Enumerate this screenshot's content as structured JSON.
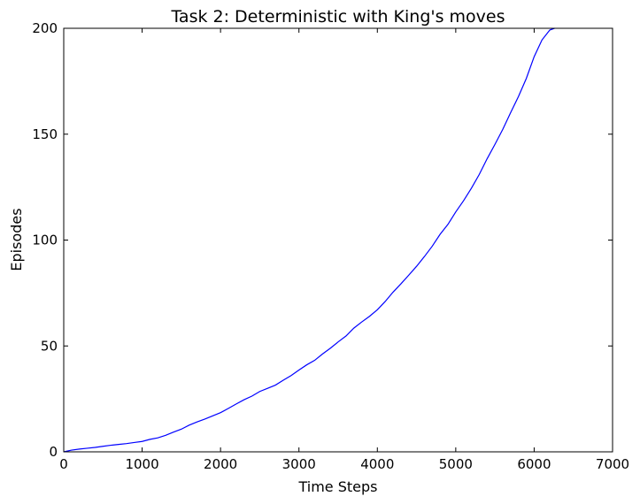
{
  "chart_data": {
    "type": "line",
    "title": "Task 2: Deterministic with King's moves",
    "xlabel": "Time Steps",
    "ylabel": "Episodes",
    "xlim": [
      0,
      7000
    ],
    "ylim": [
      0,
      200
    ],
    "xticks": [
      0,
      1000,
      2000,
      3000,
      4000,
      5000,
      6000,
      7000
    ],
    "yticks": [
      0,
      50,
      100,
      150,
      200
    ],
    "xtick_labels": [
      "0",
      "1000",
      "2000",
      "3000",
      "4000",
      "5000",
      "6000",
      "7000"
    ],
    "ytick_labels": [
      "0",
      "50",
      "100",
      "150",
      "200"
    ],
    "grid": false,
    "series": [
      {
        "color": "#0000ff",
        "x": [
          0,
          100,
          200,
          300,
          400,
          500,
          600,
          700,
          800,
          900,
          1000,
          1100,
          1200,
          1300,
          1400,
          1500,
          1600,
          1700,
          1800,
          1900,
          2000,
          2100,
          2200,
          2300,
          2400,
          2500,
          2600,
          2700,
          2800,
          2900,
          3000,
          3100,
          3200,
          3300,
          3400,
          3500,
          3600,
          3700,
          3800,
          3900,
          4000,
          4100,
          4200,
          4300,
          4400,
          4500,
          4600,
          4700,
          4800,
          4900,
          5000,
          5100,
          5200,
          5300,
          5400,
          5500,
          5600,
          5700,
          5800,
          5900,
          6000,
          6100,
          6200,
          6260
        ],
        "y": [
          0,
          0.8,
          1.3,
          1.7,
          2.1,
          2.6,
          3.1,
          3.5,
          3.9,
          4.4,
          4.9,
          5.9,
          6.6,
          7.8,
          9.3,
          10.7,
          12.6,
          14.1,
          15.5,
          17,
          18.5,
          20.5,
          22.6,
          24.6,
          26.3,
          28.5,
          30,
          31.5,
          33.8,
          36,
          38.6,
          41.1,
          43.2,
          46.2,
          48.9,
          51.9,
          54.7,
          58.4,
          61.3,
          64,
          67.1,
          71,
          75.4,
          79.3,
          83.4,
          87.6,
          92.2,
          97.1,
          102.7,
          107.4,
          113.3,
          118.6,
          124.5,
          131,
          138.4,
          145.2,
          152.3,
          160.2,
          167.8,
          176.3,
          186.6,
          194.5,
          199.2,
          200
        ]
      }
    ]
  }
}
